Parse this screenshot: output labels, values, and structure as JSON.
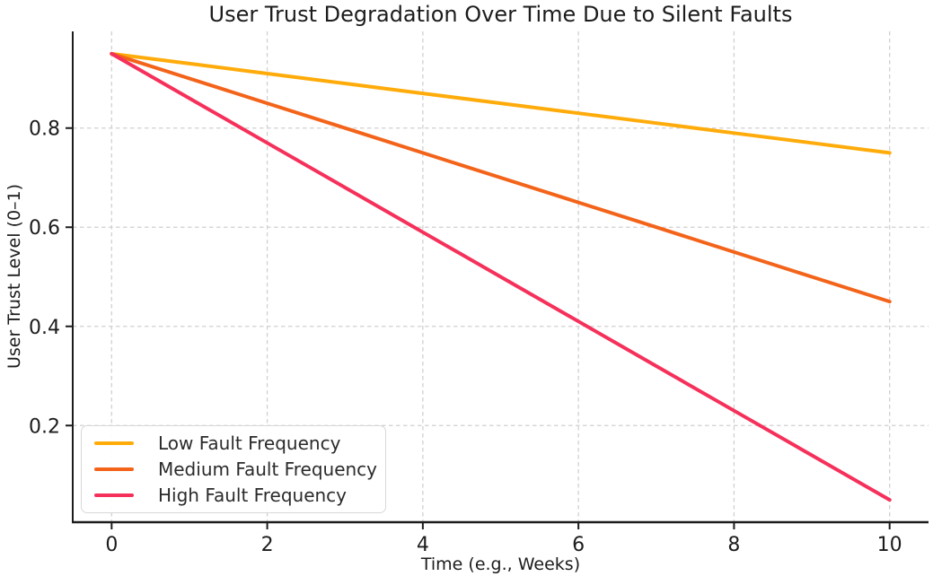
{
  "chart_data": {
    "type": "line",
    "title": "User Trust Degradation Over Time Due to Silent Faults",
    "xlabel": "Time (e.g., Weeks)",
    "ylabel": "User Trust Level (0–1)",
    "x": [
      0,
      1,
      2,
      3,
      4,
      5,
      6,
      7,
      8,
      9,
      10
    ],
    "series": [
      {
        "name": "Low Fault Frequency",
        "color": "#FFAB0A",
        "values": [
          0.95,
          0.93,
          0.91,
          0.89,
          0.87,
          0.85,
          0.83,
          0.81,
          0.79,
          0.77,
          0.75
        ]
      },
      {
        "name": "Medium Fault Frequency",
        "color": "#F3641A",
        "values": [
          0.95,
          0.9,
          0.85,
          0.8,
          0.75,
          0.7,
          0.65,
          0.6,
          0.55,
          0.5,
          0.45
        ]
      },
      {
        "name": "High Fault Frequency",
        "color": "#F5315B",
        "values": [
          0.95,
          0.86,
          0.77,
          0.68,
          0.59,
          0.5,
          0.41,
          0.32,
          0.23,
          0.14,
          0.05
        ]
      }
    ],
    "xlim": [
      -0.5,
      10.5
    ],
    "ylim": [
      0.005,
      0.995
    ],
    "xticks": [
      0,
      2,
      4,
      6,
      8,
      10
    ],
    "xtick_labels": [
      "0",
      "2",
      "4",
      "6",
      "8",
      "10"
    ],
    "yticks": [
      0.2,
      0.4,
      0.6,
      0.8
    ],
    "ytick_labels": [
      "0.2",
      "0.4",
      "0.6",
      "0.8"
    ],
    "grid": true,
    "grid_style": "dashed",
    "grid_color": "#d0d0d0",
    "axis_color": "#1c1c1c",
    "text_color": "#1c1c1c",
    "legend_position": "lower-left"
  }
}
